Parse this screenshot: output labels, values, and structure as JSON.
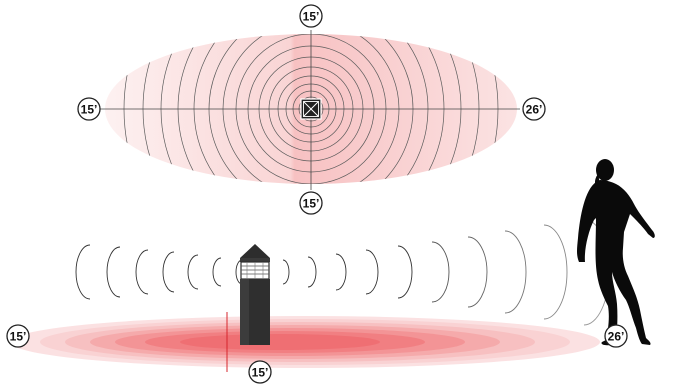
{
  "top_view": {
    "label_top": "15’",
    "label_left": "15’",
    "label_right": "26’",
    "label_bottom": "15’",
    "sensor_icon": "sensor-x-box-icon",
    "gradient_colors": [
      "#fbe3e3",
      "#f3a9aa"
    ]
  },
  "side_view": {
    "label_left": "15’",
    "label_bottom": "15’",
    "label_right": "26’",
    "bollard_icon": "bollard-light-icon",
    "person_icon": "walking-person-silhouette-icon",
    "ground_color": "#ef6f73"
  }
}
